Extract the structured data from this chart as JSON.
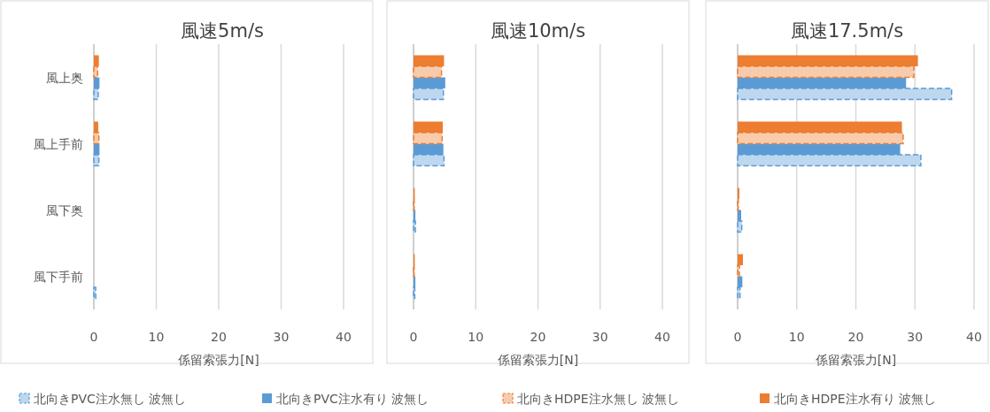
{
  "chart_data": [
    {
      "type": "bar",
      "orientation": "horizontal",
      "title": "風速5m/s",
      "xlabel": "係留索張力[N]",
      "categories": [
        "風上奥",
        "風上手前",
        "風下奥",
        "風下手前"
      ],
      "xlim": [
        0,
        40
      ],
      "xticks": [
        0,
        10,
        20,
        30,
        40
      ],
      "grid": "x",
      "legend": "bottom",
      "series": [
        {
          "name": "北向きPVC注水無し 波無し",
          "color": "#bdd7ee",
          "line_style": "dashed",
          "values": [
            0.7,
            0.8,
            0,
            0.3
          ]
        },
        {
          "name": "北向きPVC注水有り 波無し",
          "color": "#5b9bd5",
          "values": [
            0.9,
            0.9,
            0,
            0
          ]
        },
        {
          "name": "北向きHDPE注水無し 波無し",
          "color": "#f8cbad",
          "line_style": "dashed",
          "values": [
            0.6,
            0.8,
            0,
            0
          ]
        },
        {
          "name": "北向きHDPE注水有り 波無し",
          "color": "#ed7d31",
          "values": [
            0.8,
            0.7,
            0,
            0
          ]
        }
      ]
    },
    {
      "type": "bar",
      "orientation": "horizontal",
      "title": "風速10m/s",
      "xlabel": "係留索張力[N]",
      "categories": [
        null,
        null,
        null,
        null
      ],
      "xlim": [
        0,
        40
      ],
      "xticks": [
        0,
        10,
        20,
        30,
        40
      ],
      "grid": "x",
      "tick_labels": "x",
      "series": [
        {
          "color": "#bdd7ee",
          "line_style": "dashed",
          "values": [
            4.8,
            4.9,
            0.3,
            0.2
          ]
        },
        {
          "color": "#5b9bd5",
          "values": [
            5.1,
            4.8,
            0.3,
            0.3
          ]
        },
        {
          "color": "#f8cbad",
          "line_style": "dashed",
          "values": [
            4.5,
            4.6,
            0.1,
            0.1
          ]
        },
        {
          "color": "#ed7d31",
          "values": [
            4.9,
            4.7,
            0.2,
            0.2
          ]
        }
      ]
    },
    {
      "type": "bar",
      "orientation": "horizontal",
      "title": "風速17.5m/s",
      "xlabel": "係留索張力[N]",
      "categories": [
        null,
        null,
        null,
        null
      ],
      "xlim": [
        0,
        40
      ],
      "xticks": [
        0,
        10,
        20,
        30,
        40
      ],
      "grid": "x",
      "tick_labels": "x",
      "series": [
        {
          "color": "#bdd7ee",
          "line_style": "dashed",
          "values": [
            36.2,
            31.0,
            0.7,
            0.4
          ]
        },
        {
          "color": "#5b9bd5",
          "values": [
            28.5,
            27.5,
            0.6,
            0.8
          ]
        },
        {
          "color": "#f8cbad",
          "line_style": "dashed",
          "values": [
            29.8,
            28.0,
            0.1,
            0.3
          ]
        },
        {
          "color": "#ed7d31",
          "values": [
            30.5,
            27.8,
            0.3,
            0.9
          ]
        }
      ]
    }
  ]
}
